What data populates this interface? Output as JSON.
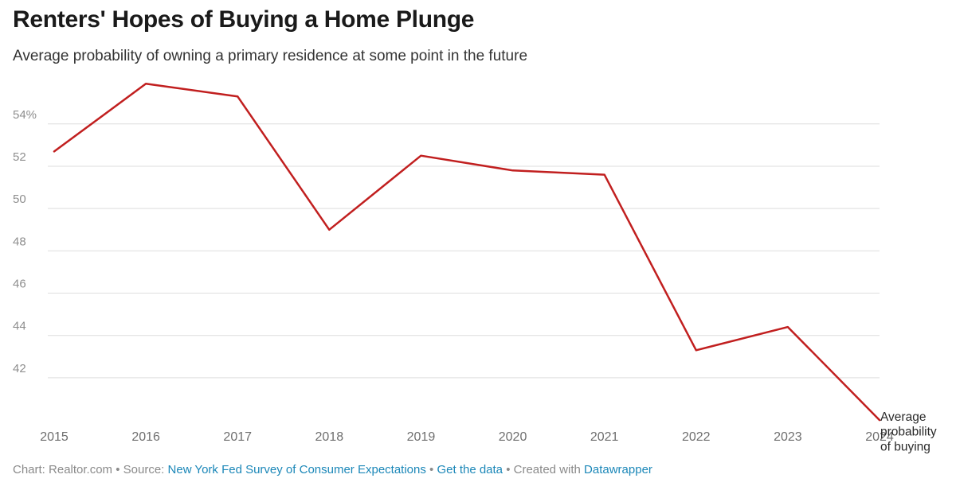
{
  "title": "Renters' Hopes of Buying a Home Plunge",
  "subtitle": "Average probability of owning a primary residence at some point in the future",
  "chart_data": {
    "type": "line",
    "title": "Renters' Hopes of Buying a Home Plunge",
    "subtitle": "Average probability of owning a primary residence at some point in the future",
    "xlabel": "",
    "ylabel": "",
    "x": [
      2015,
      2016,
      2017,
      2018,
      2019,
      2020,
      2021,
      2022,
      2023,
      2024
    ],
    "x_tick_labels": [
      "2015",
      "2016",
      "2017",
      "2018",
      "2019",
      "2020",
      "2021",
      "2022",
      "2023",
      "2024"
    ],
    "y_ticks": [
      42,
      44,
      46,
      48,
      50,
      52,
      54
    ],
    "y_tick_labels": [
      "42",
      "44",
      "46",
      "48",
      "50",
      "52",
      "54%"
    ],
    "ylim": [
      40,
      56
    ],
    "grid": true,
    "series": [
      {
        "name": "Average probability of buying",
        "label_lines": [
          "Average",
          "probability",
          "of buying"
        ],
        "color": "#c11f1f",
        "values": [
          52.7,
          55.9,
          55.3,
          49.0,
          52.5,
          51.8,
          51.6,
          43.3,
          44.4,
          40.0
        ]
      }
    ]
  },
  "footer": {
    "chart_credit": "Chart: Realtor.com",
    "separator": "•",
    "source_prefix": "Source:",
    "source_link": "New York Fed Survey of Consumer Expectations",
    "data_link": "Get the data",
    "created_prefix": "Created with",
    "tool_link": "Datawrapper"
  }
}
